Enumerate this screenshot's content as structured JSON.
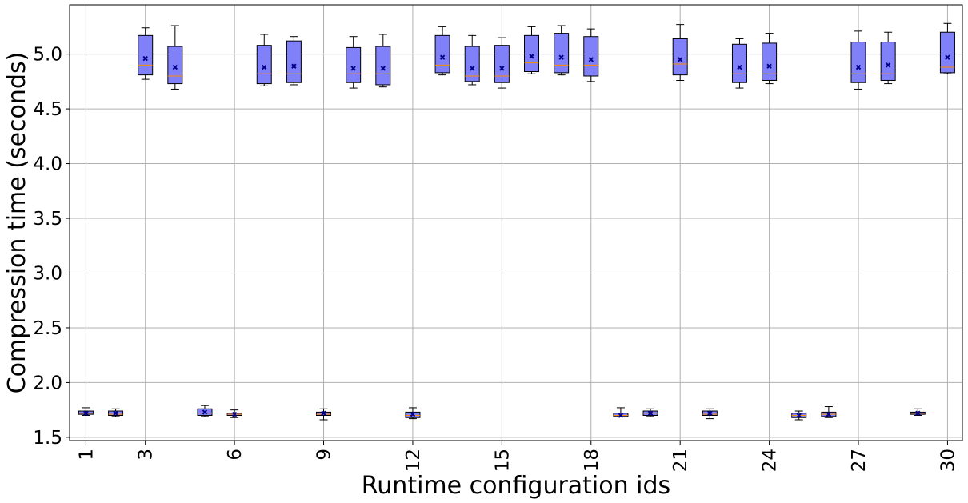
{
  "chart_data": {
    "type": "box",
    "xlabel": "Runtime configuration ids",
    "ylabel": "Compression time (seconds)",
    "ylim": [
      1.47,
      5.45
    ],
    "yticks": [
      1.5,
      2.0,
      2.5,
      3.0,
      3.5,
      4.0,
      4.5,
      5.0
    ],
    "ytick_labels": [
      "1.5",
      "2.0",
      "2.5",
      "3.0",
      "3.5",
      "4.0",
      "4.5",
      "5.0"
    ],
    "xticks": [
      1,
      3,
      6,
      9,
      12,
      15,
      18,
      21,
      24,
      27,
      30
    ],
    "xtick_labels": [
      "1",
      "3",
      "6",
      "9",
      "12",
      "15",
      "18",
      "21",
      "24",
      "27",
      "30"
    ],
    "grid": true,
    "colors": {
      "box_fill": "#8080f8",
      "box_edge": "#000000",
      "median": "#ff8c00",
      "mean_marker": "#00008b",
      "grid": "#b0b0b0"
    },
    "boxes": [
      {
        "id": 1,
        "whislo": 1.7,
        "q1": 1.71,
        "med": 1.72,
        "q3": 1.74,
        "whishi": 1.77,
        "mean": 1.72
      },
      {
        "id": 2,
        "whislo": 1.69,
        "q1": 1.7,
        "med": 1.71,
        "q3": 1.74,
        "whishi": 1.76,
        "mean": 1.72
      },
      {
        "id": 3,
        "whislo": 4.77,
        "q1": 4.81,
        "med": 4.9,
        "q3": 5.17,
        "whishi": 5.24,
        "mean": 4.96
      },
      {
        "id": 4,
        "whislo": 4.68,
        "q1": 4.73,
        "med": 4.8,
        "q3": 5.07,
        "whishi": 5.26,
        "mean": 4.88
      },
      {
        "id": 5,
        "whislo": 1.69,
        "q1": 1.7,
        "med": 1.72,
        "q3": 1.76,
        "whishi": 1.79,
        "mean": 1.73
      },
      {
        "id": 6,
        "whislo": 1.68,
        "q1": 1.7,
        "med": 1.71,
        "q3": 1.72,
        "whishi": 1.75,
        "mean": 1.71
      },
      {
        "id": 7,
        "whislo": 4.71,
        "q1": 4.73,
        "med": 4.82,
        "q3": 5.08,
        "whishi": 5.18,
        "mean": 4.88
      },
      {
        "id": 8,
        "whislo": 4.72,
        "q1": 4.74,
        "med": 4.82,
        "q3": 5.12,
        "whishi": 5.16,
        "mean": 4.89
      },
      {
        "id": 9,
        "whislo": 1.66,
        "q1": 1.7,
        "med": 1.71,
        "q3": 1.73,
        "whishi": 1.76,
        "mean": 1.72
      },
      {
        "id": 10,
        "whislo": 4.69,
        "q1": 4.74,
        "med": 4.82,
        "q3": 5.06,
        "whishi": 5.16,
        "mean": 4.87
      },
      {
        "id": 11,
        "whislo": 4.7,
        "q1": 4.72,
        "med": 4.82,
        "q3": 5.07,
        "whishi": 5.18,
        "mean": 4.87
      },
      {
        "id": 12,
        "whislo": 1.67,
        "q1": 1.68,
        "med": 1.7,
        "q3": 1.73,
        "whishi": 1.77,
        "mean": 1.71
      },
      {
        "id": 13,
        "whislo": 4.81,
        "q1": 4.83,
        "med": 4.9,
        "q3": 5.17,
        "whishi": 5.25,
        "mean": 4.97
      },
      {
        "id": 14,
        "whislo": 4.72,
        "q1": 4.75,
        "med": 4.8,
        "q3": 5.07,
        "whishi": 5.17,
        "mean": 4.87
      },
      {
        "id": 15,
        "whislo": 4.69,
        "q1": 4.74,
        "med": 4.8,
        "q3": 5.08,
        "whishi": 5.15,
        "mean": 4.87
      },
      {
        "id": 16,
        "whislo": 4.82,
        "q1": 4.84,
        "med": 4.92,
        "q3": 5.17,
        "whishi": 5.25,
        "mean": 4.98
      },
      {
        "id": 17,
        "whislo": 4.81,
        "q1": 4.83,
        "med": 4.9,
        "q3": 5.19,
        "whishi": 5.26,
        "mean": 4.97
      },
      {
        "id": 18,
        "whislo": 4.75,
        "q1": 4.8,
        "med": 4.9,
        "q3": 5.16,
        "whishi": 5.23,
        "mean": 4.95
      },
      {
        "id": 19,
        "whislo": 1.69,
        "q1": 1.69,
        "med": 1.7,
        "q3": 1.72,
        "whishi": 1.77,
        "mean": 1.7
      },
      {
        "id": 20,
        "whislo": 1.69,
        "q1": 1.7,
        "med": 1.72,
        "q3": 1.74,
        "whishi": 1.76,
        "mean": 1.72
      },
      {
        "id": 21,
        "whislo": 4.76,
        "q1": 4.81,
        "med": 4.91,
        "q3": 5.14,
        "whishi": 5.27,
        "mean": 4.95
      },
      {
        "id": 22,
        "whislo": 1.67,
        "q1": 1.7,
        "med": 1.71,
        "q3": 1.74,
        "whishi": 1.76,
        "mean": 1.72
      },
      {
        "id": 23,
        "whislo": 4.69,
        "q1": 4.74,
        "med": 4.82,
        "q3": 5.09,
        "whishi": 5.14,
        "mean": 4.88
      },
      {
        "id": 24,
        "whislo": 4.73,
        "q1": 4.76,
        "med": 4.82,
        "q3": 5.1,
        "whishi": 5.19,
        "mean": 4.89
      },
      {
        "id": 25,
        "whislo": 1.66,
        "q1": 1.68,
        "med": 1.7,
        "q3": 1.72,
        "whishi": 1.74,
        "mean": 1.7
      },
      {
        "id": 26,
        "whislo": 1.68,
        "q1": 1.69,
        "med": 1.71,
        "q3": 1.73,
        "whishi": 1.78,
        "mean": 1.71
      },
      {
        "id": 27,
        "whislo": 4.68,
        "q1": 4.74,
        "med": 4.82,
        "q3": 5.11,
        "whishi": 5.21,
        "mean": 4.88
      },
      {
        "id": 28,
        "whislo": 4.73,
        "q1": 4.76,
        "med": 4.82,
        "q3": 5.11,
        "whishi": 5.2,
        "mean": 4.9
      },
      {
        "id": 29,
        "whislo": 1.7,
        "q1": 1.71,
        "med": 1.72,
        "q3": 1.73,
        "whishi": 1.76,
        "mean": 1.72
      },
      {
        "id": 30,
        "whislo": 4.82,
        "q1": 4.83,
        "med": 4.88,
        "q3": 5.2,
        "whishi": 5.28,
        "mean": 4.97
      }
    ]
  }
}
